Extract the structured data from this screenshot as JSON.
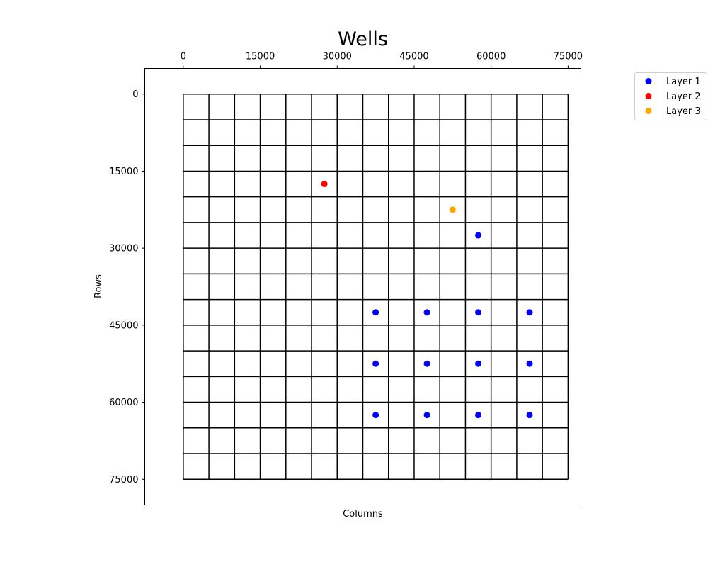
{
  "chart_data": {
    "type": "scatter",
    "title": "Wells",
    "xlabel": "Columns",
    "ylabel": "Rows",
    "xlim": [
      -7500,
      77500
    ],
    "ylim": [
      80000,
      -5000
    ],
    "y_inverted": true,
    "x_ticks": [
      0,
      15000,
      30000,
      45000,
      60000,
      75000
    ],
    "x_tick_labels": [
      "0",
      "15000",
      "30000",
      "45000",
      "60000",
      "75000"
    ],
    "x_ticks_position": "top",
    "y_ticks": [
      0,
      15000,
      30000,
      45000,
      60000,
      75000
    ],
    "y_tick_labels": [
      "0",
      "15000",
      "30000",
      "45000",
      "60000",
      "75000"
    ],
    "grid": {
      "show": true,
      "x_lines": [
        0,
        5000,
        10000,
        15000,
        20000,
        25000,
        30000,
        35000,
        40000,
        45000,
        50000,
        55000,
        60000,
        65000,
        70000,
        75000
      ],
      "y_lines": [
        0,
        5000,
        10000,
        15000,
        20000,
        25000,
        30000,
        35000,
        40000,
        45000,
        50000,
        55000,
        60000,
        65000,
        70000,
        75000
      ]
    },
    "legend": {
      "position": "outside-top-right",
      "entries": [
        "Layer 1",
        "Layer 2",
        "Layer 3"
      ]
    },
    "series": [
      {
        "name": "Layer 1",
        "color": "#0000ff",
        "points": [
          {
            "x": 57500,
            "y": 27500
          },
          {
            "x": 37500,
            "y": 42500
          },
          {
            "x": 47500,
            "y": 42500
          },
          {
            "x": 57500,
            "y": 42500
          },
          {
            "x": 67500,
            "y": 42500
          },
          {
            "x": 37500,
            "y": 52500
          },
          {
            "x": 47500,
            "y": 52500
          },
          {
            "x": 57500,
            "y": 52500
          },
          {
            "x": 67500,
            "y": 52500
          },
          {
            "x": 37500,
            "y": 62500
          },
          {
            "x": 47500,
            "y": 62500
          },
          {
            "x": 57500,
            "y": 62500
          },
          {
            "x": 67500,
            "y": 62500
          }
        ]
      },
      {
        "name": "Layer 2",
        "color": "#ff0000",
        "points": [
          {
            "x": 27500,
            "y": 17500
          }
        ]
      },
      {
        "name": "Layer 3",
        "color": "#ffa500",
        "points": [
          {
            "x": 52500,
            "y": 22500
          }
        ]
      }
    ]
  }
}
